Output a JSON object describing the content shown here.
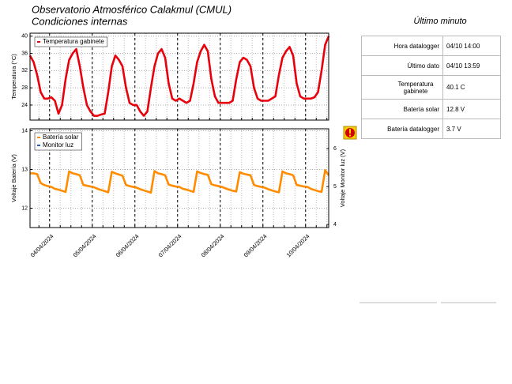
{
  "header": {
    "title": "Observatorio Atmosférico Calakmul (CMUL)",
    "subtitle": "Condiciones internas"
  },
  "panel": {
    "title": "Último minuto",
    "rows": [
      [
        "Hora datalogger",
        "04/10 14:00"
      ],
      [
        "Último dato",
        "04/10 13:59"
      ],
      [
        "Temperatura gabinete",
        "40.1 C"
      ],
      [
        "Batería solar",
        "12.8 V"
      ],
      [
        "Batería datalogger",
        "3.7 V"
      ]
    ]
  },
  "chart_data": [
    {
      "type": "line",
      "ylabel": "Temperatura (°C)",
      "xlim": [
        0,
        84
      ],
      "ylim": [
        20.5,
        40.7
      ],
      "yticks": [
        24,
        28,
        32,
        36,
        40
      ],
      "grid": true,
      "legend": "upper left",
      "series": [
        {
          "name": "Temperatura gabinete",
          "color": "#e8000b",
          "values": [
            35.5,
            34,
            31,
            27,
            25.5,
            25.5,
            25.8,
            25,
            22,
            24,
            30,
            34.5,
            36,
            37,
            33,
            28,
            24,
            22.5,
            21.5,
            21.5,
            21.8,
            22,
            27,
            33,
            35.5,
            34.5,
            33,
            28,
            24.5,
            24,
            24,
            22.5,
            21.5,
            22.5,
            28,
            33,
            36,
            37,
            35,
            29,
            25.5,
            25,
            25.5,
            25,
            24.5,
            25,
            29,
            34,
            36.5,
            38,
            36.5,
            30,
            26,
            24.5,
            24.5,
            24.5,
            24.5,
            25,
            30,
            34,
            35,
            34.5,
            33,
            28,
            25.5,
            25,
            25,
            25,
            25.5,
            26,
            31,
            35,
            36.5,
            37.5,
            35.5,
            29,
            26,
            25.5,
            25.5,
            25.5,
            25.8,
            27,
            32,
            38,
            40
          ]
        }
      ]
    },
    {
      "type": "line",
      "ylabel": "Voltaje Batería (V)",
      "y2label": "Voltaje Monitor luz (V)",
      "xlim": [
        0,
        84
      ],
      "ylim": [
        11.5,
        14.05
      ],
      "yticks": [
        12,
        13,
        14
      ],
      "y2lim": [
        3.92,
        6.52
      ],
      "y2ticks": [
        4,
        5,
        6
      ],
      "grid": true,
      "legend": "upper left",
      "xticks": [
        {
          "value": 5.5,
          "label": "04/04/2024"
        },
        {
          "value": 17.5,
          "label": "05/04/2024"
        },
        {
          "value": 29.5,
          "label": "06/04/2024"
        },
        {
          "value": 41.5,
          "label": "07/04/2024"
        },
        {
          "value": 53.5,
          "label": "08/04/2024"
        },
        {
          "value": 65.5,
          "label": "09/04/2024"
        },
        {
          "value": 77.5,
          "label": "10/04/2024"
        }
      ],
      "series": [
        {
          "name": "Batería solar",
          "color": "#ff8c00",
          "values": [
            12.9,
            12.9,
            12.88,
            12.65,
            12.6,
            12.57,
            12.55,
            12.5,
            12.48,
            12.45,
            12.42,
            12.95,
            12.9,
            12.88,
            12.85,
            12.6,
            12.58,
            12.56,
            12.54,
            12.5,
            12.47,
            12.44,
            12.41,
            12.94,
            12.9,
            12.87,
            12.84,
            12.6,
            12.57,
            12.55,
            12.53,
            12.49,
            12.46,
            12.43,
            12.4,
            12.96,
            12.9,
            12.88,
            12.85,
            12.61,
            12.58,
            12.56,
            12.55,
            12.5,
            12.48,
            12.45,
            12.42,
            12.95,
            12.91,
            12.88,
            12.86,
            12.62,
            12.59,
            12.57,
            12.55,
            12.51,
            12.48,
            12.45,
            12.43,
            12.93,
            12.89,
            12.87,
            12.85,
            12.6,
            12.57,
            12.55,
            12.53,
            12.49,
            12.46,
            12.43,
            12.41,
            12.95,
            12.9,
            12.88,
            12.85,
            12.6,
            12.58,
            12.56,
            12.55,
            12.5,
            12.47,
            12.44,
            12.42,
            12.98,
            12.85
          ]
        },
        {
          "name": "Monitor luz",
          "color": "#1f5fbf",
          "axis": "y2"
        }
      ]
    }
  ]
}
